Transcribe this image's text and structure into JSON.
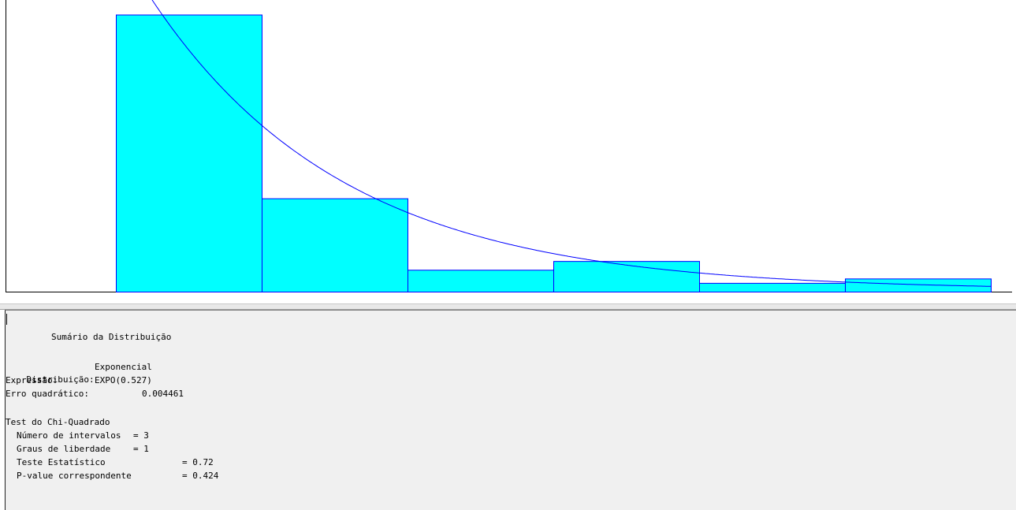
{
  "summary": {
    "title": "Sumário da Distribuição",
    "distribution_label": "Distribuição:",
    "distribution_value": "Exponencial",
    "expression_label": "Expressão:",
    "expression_value": "EXPO(0.527)",
    "sq_error_label": "Erro quadrático:",
    "sq_error_value": "0.004461"
  },
  "chi_square": {
    "title": "Test do Chi-Quadrado",
    "intervals_label": "Número de intervalos",
    "intervals_value": "= 3",
    "dof_label": "Graus de liberdade",
    "dof_value": "= 1",
    "statistic_label": "Teste Estatístico",
    "statistic_value": "= 0.72",
    "pvalue_label": "P-value correspondente",
    "pvalue_value": "= 0.424"
  },
  "chart_data": {
    "type": "bar",
    "bins": 6,
    "values": [
      0.95,
      0.32,
      0.075,
      0.105,
      0.03,
      0.045
    ],
    "ylim": [
      0,
      1
    ],
    "fit_curve": {
      "name": "",
      "type": "exponential",
      "mean": 0.527
    },
    "bar_fill": "#00ffff",
    "bar_stroke": "#0000ff",
    "curve_color": "#0000ff"
  }
}
